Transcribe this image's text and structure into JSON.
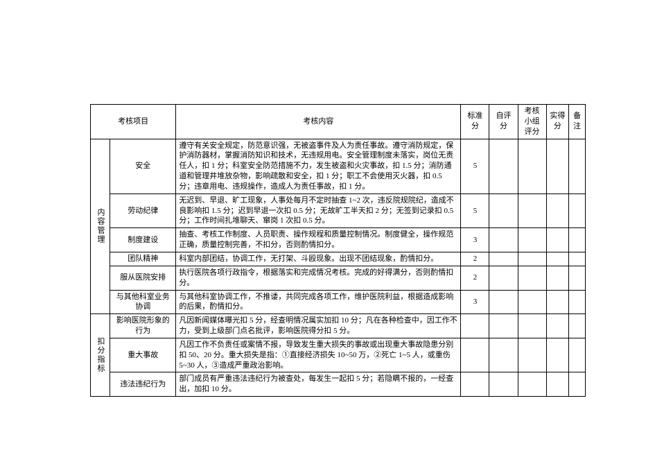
{
  "headers": {
    "project": "考核项目",
    "content": "考核内容",
    "std": "标准分",
    "self": "自评分",
    "group": "考核小组评分",
    "actual": "实得分",
    "note": "备注"
  },
  "section1": {
    "title": "内容管理",
    "rows": [
      {
        "sub": "安全",
        "content": "遵守有关安全规定，防范意识强，无被盗事件及人为责任事故。遵守消防规定，保护消防器材，掌握消防知识和技术，无违规用电。安全管理制度未落实，岗位无责任人，扣 1 分；科室安全防范措施不力，发生被盗和火灾事故，扣 1.5 分；消防通道和管理井堆放杂物，影响疏散和安全，扣 1 分；职工不会使用灭火器，扣 0.5 分；违章用电、违规操作，造成人为责任事故，扣 1 分。",
        "std": "5"
      },
      {
        "sub": "劳动纪律",
        "content": "无迟到、早退、旷工现象，人事处每月不定时抽查 1~2 次，违反院规院纪，造成不良影响扣 1.5 分；迟到早退一次扣 0.5 分；无故旷工半天扣 2 分；无签到记录扣 0.5 分；工作时间扎堆聊天、窜岗 1 次扣 0.5 分。",
        "std": "5"
      },
      {
        "sub": "制度建设",
        "content": "抽查、考核工作制度、人员职责、操作规程和质量控制情况。制度健全，操作规范正确，质量控制完善，不扣分，否则酌情扣分。",
        "std": "3"
      },
      {
        "sub": "团队精神",
        "content": "科室内部团结，协调工作，无打架、斗殴现象。出现不团结现象，酌情扣分。",
        "std": "2"
      },
      {
        "sub": "服从医院安排",
        "content": "执行医院各项行政指令，根据落实和完成情况考核。完成的好得满分，否则酌情扣分。",
        "std": "2"
      },
      {
        "sub": "与其他科室业务协调",
        "content": "与其他科室协调工作，不推诿，共同完成各项工作，维护医院利益，根据造成影响的后果，酌情扣分。",
        "std": "3"
      }
    ]
  },
  "section2": {
    "title": "扣分指标",
    "rows": [
      {
        "sub": "影响医院形象的行为",
        "content": "凡因新闻媒体曝光扣 5 分，经查明情况属实加扣 10 分；凡在各种检查中，因工作不力，受到上级部门点名批评，影响医院得分扣 5 分。",
        "std": ""
      },
      {
        "sub": "重大事故",
        "content": "凡因工作不负责任或案情不报，导致发生重大损失的事故或出现重大事故隐患分别扣 50、20 分。重大损失是指：①直接经济损失 10~50 万，②死亡 1~5 人，或重伤 5~30 人，③造成严重政治影响。",
        "std": ""
      },
      {
        "sub": "违法违纪行为",
        "content": "部门成员有严重违法违纪行为被查处，每发生一起扣 5 分；若隐瞒不报的，一经查出，加扣 10 分。",
        "std": ""
      }
    ]
  }
}
